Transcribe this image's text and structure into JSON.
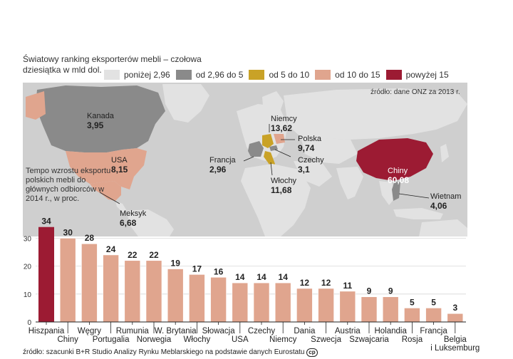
{
  "title": "Światowy ranking eksporterów mebli – czołowa dziesiątka w mld dol.",
  "source_map": "źródło: dane ONZ za 2013 r.",
  "legend": [
    {
      "label": "poniżej 2,96",
      "color": "#e2e2e2"
    },
    {
      "label": "od 2,96 do 5",
      "color": "#8a8a8a"
    },
    {
      "label": "od 5 do 10",
      "color": "#c9a227"
    },
    {
      "label": "od 10 do 15",
      "color": "#e0a58e"
    },
    {
      "label": "powyżej 15",
      "color": "#9c1b33"
    }
  ],
  "exporters": [
    {
      "name": "Kanada",
      "value": "3,95"
    },
    {
      "name": "USA",
      "value": "8,15"
    },
    {
      "name": "Meksyk",
      "value": "6,68"
    },
    {
      "name": "Niemcy",
      "value": "13,62"
    },
    {
      "name": "Polska",
      "value": "9,74"
    },
    {
      "name": "Francja",
      "value": "2,96"
    },
    {
      "name": "Czechy",
      "value": "3,1"
    },
    {
      "name": "Włochy",
      "value": "11,68"
    },
    {
      "name": "Chiny",
      "value": "60,08"
    },
    {
      "name": "Wietnam",
      "value": "4,06"
    }
  ],
  "growth_title": "Tempo wzrostu eksportu polskich mebli do głównych odbiorców w 2014 r., w proc.",
  "source": "źródło: szacunki B+R Studio Analizy Rynku Meblarskiego na podstawie danych Eurostatu",
  "chart_data": {
    "type": "bar",
    "title": "Tempo wzrostu eksportu polskich mebli do głównych odbiorców w 2014 r., w proc.",
    "categories": [
      "Hiszpania",
      "Chiny",
      "Węgry",
      "Portugalia",
      "Rumunia",
      "Norwegia",
      "W. Brytania",
      "Włochy",
      "Słowacja",
      "USA",
      "Czechy",
      "Niemcy",
      "Dania",
      "Szwecja",
      "Austria",
      "Szwajcaria",
      "Holandia",
      "Rosja",
      "Francja",
      "Belgia i Luksemburg"
    ],
    "values": [
      34,
      30,
      28,
      24,
      22,
      22,
      19,
      17,
      16,
      14,
      14,
      14,
      12,
      12,
      11,
      9,
      9,
      5,
      5,
      3
    ],
    "ylim": [
      0,
      35
    ],
    "yticks": [
      0,
      10,
      20,
      30
    ],
    "highlight_color": "#9c1b33",
    "bar_color": "#e0a58e"
  }
}
